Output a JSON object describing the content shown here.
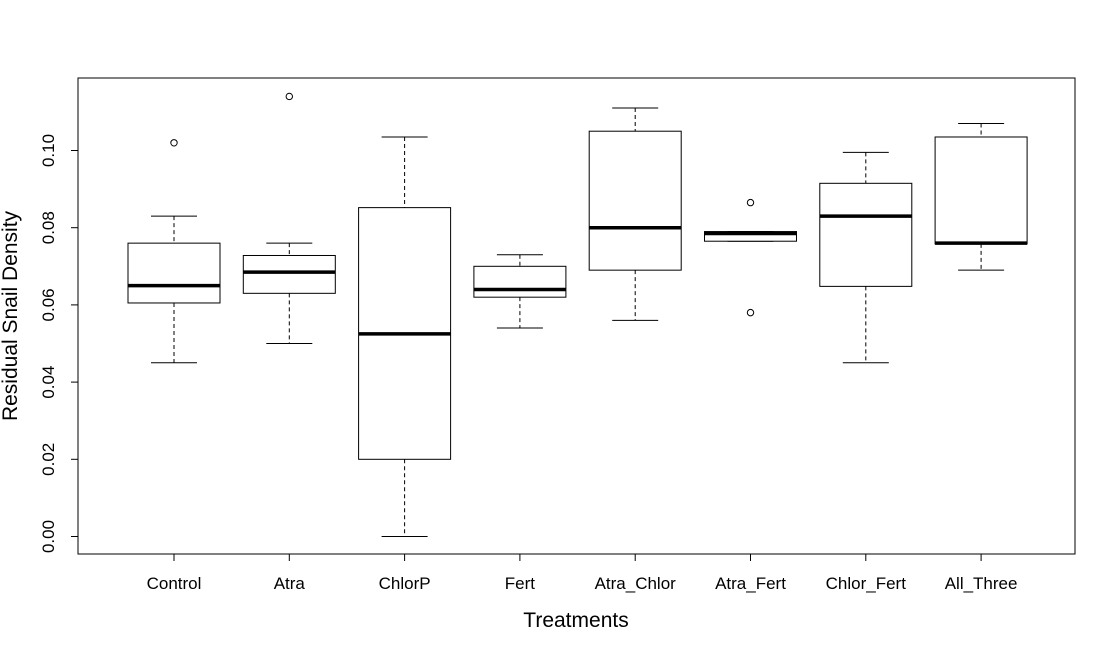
{
  "chart_data": {
    "type": "boxplot",
    "xlabel": "Treatments",
    "ylabel": "Residual Snail Density",
    "ylim": [
      -0.0045,
      0.1195
    ],
    "yticks": [
      "0.00",
      "0.02",
      "0.04",
      "0.06",
      "0.08",
      "0.10"
    ],
    "ytick_values": [
      0.0,
      0.02,
      0.04,
      0.06,
      0.08,
      0.1
    ],
    "grid": false,
    "categories": [
      "Control",
      "Atra",
      "ChlorP",
      "Fert",
      "Atra_Chlor",
      "Atra_Fert",
      "Chlor_Fert",
      "All_Three"
    ],
    "boxes": [
      {
        "whisker_low": 0.045,
        "q1": 0.0605,
        "median": 0.065,
        "q3": 0.076,
        "whisker_high": 0.083,
        "outliers": [
          0.102
        ]
      },
      {
        "whisker_low": 0.05,
        "q1": 0.063,
        "median": 0.0685,
        "q3": 0.0728,
        "whisker_high": 0.076,
        "outliers": [
          0.114
        ]
      },
      {
        "whisker_low": 0.0,
        "q1": 0.02,
        "median": 0.0525,
        "q3": 0.0852,
        "whisker_high": 0.1035,
        "outliers": []
      },
      {
        "whisker_low": 0.054,
        "q1": 0.062,
        "median": 0.064,
        "q3": 0.07,
        "whisker_high": 0.073,
        "outliers": []
      },
      {
        "whisker_low": 0.056,
        "q1": 0.069,
        "median": 0.08,
        "q3": 0.105,
        "whisker_high": 0.111,
        "outliers": []
      },
      {
        "whisker_low": 0.0765,
        "q1": 0.0765,
        "median": 0.0785,
        "q3": 0.079,
        "whisker_high": 0.079,
        "outliers": [
          0.0865,
          0.058
        ]
      },
      {
        "whisker_low": 0.045,
        "q1": 0.0648,
        "median": 0.083,
        "q3": 0.0915,
        "whisker_high": 0.0995,
        "outliers": []
      },
      {
        "whisker_low": 0.069,
        "q1": 0.0758,
        "median": 0.076,
        "q3": 0.1035,
        "whisker_high": 0.107,
        "outliers": []
      }
    ]
  }
}
